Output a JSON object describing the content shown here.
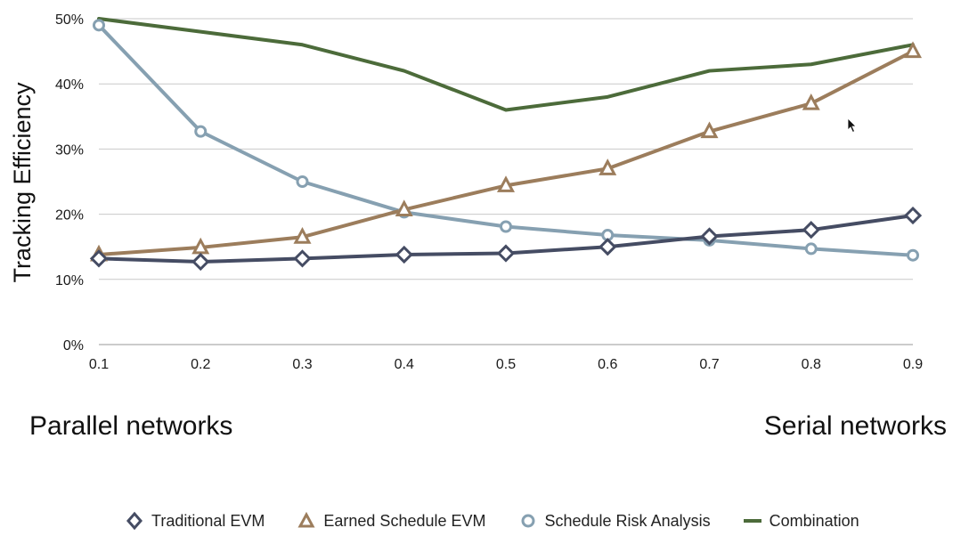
{
  "chart_data": {
    "type": "line",
    "ylabel": "Tracking Efficiency",
    "xlabel": "",
    "x": [
      0.1,
      0.2,
      0.3,
      0.4,
      0.5,
      0.6,
      0.7,
      0.8,
      0.9
    ],
    "x_tick_labels": [
      "0.1",
      "0.2",
      "0.3",
      "0.4",
      "0.5",
      "0.6",
      "0.7",
      "0.8",
      "0.9"
    ],
    "y_tick_labels": [
      "0%",
      "10%",
      "20%",
      "30%",
      "40%",
      "50%"
    ],
    "y_ticks": [
      0,
      10,
      20,
      30,
      40,
      50
    ],
    "ylim": [
      0,
      50
    ],
    "grid": "horizontal",
    "legend_position": "bottom",
    "series": [
      {
        "name": "Traditional EVM",
        "marker": "diamond",
        "color": "#454c63",
        "values": [
          13.2,
          12.7,
          13.2,
          13.8,
          14.0,
          15.0,
          16.6,
          17.6,
          19.8
        ]
      },
      {
        "name": "Earned Schedule EVM",
        "marker": "triangle",
        "color": "#9c7d5c",
        "values": [
          13.8,
          14.9,
          16.5,
          20.7,
          24.4,
          27.0,
          32.7,
          37.0,
          45.0
        ]
      },
      {
        "name": "Schedule Risk Analysis",
        "marker": "circle",
        "color": "#86a0b1",
        "values": [
          49.0,
          32.7,
          25.0,
          20.3,
          18.1,
          16.8,
          16.0,
          14.7,
          13.7
        ]
      },
      {
        "name": "Combination",
        "marker": "none",
        "color": "#4c6b3a",
        "values": [
          50.0,
          48.0,
          46.0,
          42.0,
          36.0,
          38.0,
          42.0,
          43.0,
          46.0
        ]
      }
    ]
  },
  "captions": {
    "left": "Parallel networks",
    "right": "Serial networks"
  }
}
